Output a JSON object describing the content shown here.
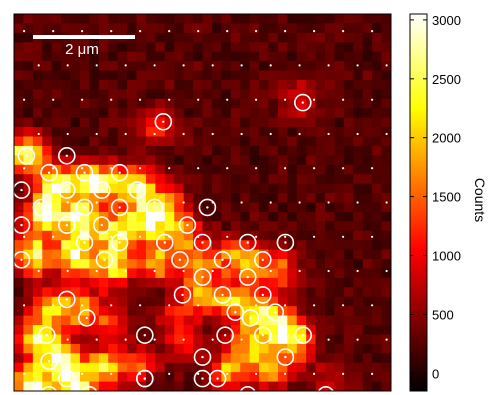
{
  "chart_data": {
    "type": "heatmap",
    "title": "",
    "xlabel": "",
    "ylabel": "",
    "grid": false,
    "map": {
      "rows": 40,
      "cols": 40,
      "description_hidden": true,
      "colormap": "hot",
      "vmin": -150,
      "vmax": 3050,
      "background_counts": 250,
      "blobs_xy_counts": [
        [
          0.03,
          0.37,
          2300
        ],
        [
          0.12,
          0.45,
          2400
        ],
        [
          0.22,
          0.45,
          2700
        ],
        [
          0.32,
          0.46,
          2300
        ],
        [
          0.4,
          0.5,
          1700
        ],
        [
          0.08,
          0.53,
          2500
        ],
        [
          0.18,
          0.55,
          2700
        ],
        [
          0.28,
          0.58,
          2500
        ],
        [
          0.36,
          0.55,
          2000
        ],
        [
          0.44,
          0.58,
          1600
        ],
        [
          0.05,
          0.64,
          2300
        ],
        [
          0.16,
          0.64,
          2500
        ],
        [
          0.26,
          0.67,
          2200
        ],
        [
          0.38,
          0.66,
          1500
        ],
        [
          0.48,
          0.66,
          1200
        ],
        [
          0.56,
          0.64,
          1000
        ],
        [
          0.62,
          0.66,
          1400
        ],
        [
          0.7,
          0.68,
          1300
        ],
        [
          0.5,
          0.74,
          1300
        ],
        [
          0.58,
          0.76,
          1600
        ],
        [
          0.66,
          0.8,
          2000
        ],
        [
          0.72,
          0.84,
          1900
        ],
        [
          0.62,
          0.88,
          1700
        ],
        [
          0.68,
          0.94,
          1600
        ],
        [
          0.57,
          0.95,
          1500
        ],
        [
          0.06,
          0.86,
          1800
        ],
        [
          0.12,
          0.91,
          2300
        ],
        [
          0.05,
          0.98,
          2700
        ],
        [
          0.16,
          0.98,
          2500
        ],
        [
          0.24,
          0.94,
          1800
        ],
        [
          0.18,
          0.78,
          1600
        ],
        [
          0.1,
          0.78,
          1700
        ],
        [
          0.33,
          0.93,
          1100
        ],
        [
          0.45,
          0.88,
          800
        ],
        [
          0.38,
          0.3,
          1000
        ],
        [
          0.76,
          0.23,
          800
        ],
        [
          0.84,
          0.98,
          700
        ],
        [
          0.75,
          0.88,
          1200
        ],
        [
          0.44,
          0.8,
          900
        ],
        [
          0.26,
          0.82,
          900
        ]
      ]
    },
    "markers": {
      "circles_xy": [
        [
          0.396,
          0.286
        ],
        [
          0.766,
          0.235
        ],
        [
          0.033,
          0.376
        ],
        [
          0.14,
          0.376
        ],
        [
          0.093,
          0.421
        ],
        [
          0.187,
          0.421
        ],
        [
          0.28,
          0.421
        ],
        [
          0.02,
          0.467
        ],
        [
          0.14,
          0.467
        ],
        [
          0.233,
          0.467
        ],
        [
          0.327,
          0.467
        ],
        [
          0.073,
          0.513
        ],
        [
          0.187,
          0.513
        ],
        [
          0.28,
          0.513
        ],
        [
          0.373,
          0.513
        ],
        [
          0.513,
          0.513
        ],
        [
          0.02,
          0.56
        ],
        [
          0.14,
          0.56
        ],
        [
          0.233,
          0.56
        ],
        [
          0.46,
          0.56
        ],
        [
          0.187,
          0.606
        ],
        [
          0.28,
          0.606
        ],
        [
          0.4,
          0.606
        ],
        [
          0.5,
          0.606
        ],
        [
          0.62,
          0.606
        ],
        [
          0.72,
          0.606
        ],
        [
          0.02,
          0.652
        ],
        [
          0.24,
          0.652
        ],
        [
          0.44,
          0.652
        ],
        [
          0.553,
          0.652
        ],
        [
          0.66,
          0.652
        ],
        [
          0.5,
          0.698
        ],
        [
          0.62,
          0.698
        ],
        [
          0.447,
          0.745
        ],
        [
          0.553,
          0.745
        ],
        [
          0.66,
          0.745
        ],
        [
          0.14,
          0.757
        ],
        [
          0.587,
          0.791
        ],
        [
          0.693,
          0.791
        ],
        [
          0.193,
          0.806
        ],
        [
          0.627,
          0.806
        ],
        [
          0.767,
          0.852
        ],
        [
          0.087,
          0.852
        ],
        [
          0.347,
          0.852
        ],
        [
          0.56,
          0.852
        ],
        [
          0.66,
          0.852
        ],
        [
          0.5,
          0.91
        ],
        [
          0.72,
          0.91
        ],
        [
          0.093,
          0.921
        ],
        [
          0.14,
          0.967
        ],
        [
          0.347,
          0.967
        ],
        [
          0.54,
          0.967
        ],
        [
          0.2,
          1.01
        ],
        [
          0.093,
          1.01
        ],
        [
          0.62,
          1.01
        ],
        [
          0.827,
          1.01
        ],
        [
          0.347,
          0.967
        ],
        [
          0.5,
          0.967
        ]
      ],
      "dot_grid": {
        "rows": 11,
        "cols": 13
      }
    },
    "scalebar": {
      "label": "2 μm"
    },
    "colorbar": {
      "label": "Counts",
      "ticks": [
        0,
        500,
        1000,
        1500,
        2000,
        2500,
        3000
      ],
      "tick_labels": [
        "0",
        "500",
        "1000",
        "1500",
        "2000",
        "2500",
        "3000"
      ]
    }
  }
}
